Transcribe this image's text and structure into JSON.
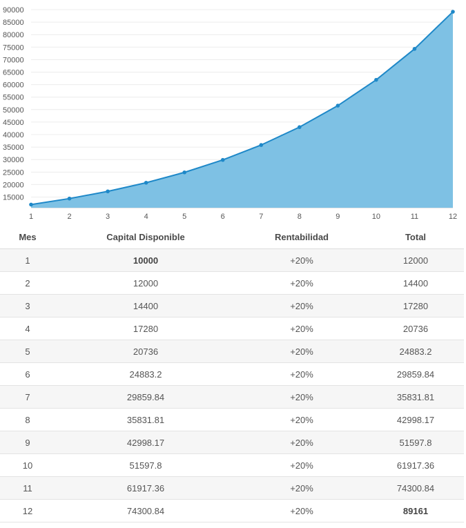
{
  "colors": {
    "line": "#1e88c8",
    "area": "#7ec1e4",
    "point": "#1e88c8"
  },
  "chart_data": {
    "type": "area",
    "title": "",
    "xlabel": "",
    "ylabel": "",
    "x": [
      1,
      2,
      3,
      4,
      5,
      6,
      7,
      8,
      9,
      10,
      11,
      12
    ],
    "series": [
      {
        "values": [
          12000,
          14400,
          17280,
          20736,
          24883.2,
          29859.84,
          35831.81,
          42998.17,
          51597.8,
          61917.36,
          74300.84,
          89161
        ]
      }
    ],
    "yticks": [
      15000,
      20000,
      25000,
      30000,
      35000,
      40000,
      45000,
      50000,
      55000,
      60000,
      65000,
      70000,
      75000,
      80000,
      85000,
      90000
    ],
    "xticks": [
      1,
      2,
      3,
      4,
      5,
      6,
      7,
      8,
      9,
      10,
      11,
      12
    ],
    "ylim": [
      11000,
      90000
    ],
    "grid": true,
    "legend": "none"
  },
  "table": {
    "headers": [
      "Mes",
      "Capital Disponible",
      "Rentabilidad",
      "Total"
    ],
    "rows": [
      {
        "mes": "1",
        "capital": "10000",
        "rent": "+20%",
        "total": "12000",
        "bold_capital": true,
        "bold_total": false
      },
      {
        "mes": "2",
        "capital": "12000",
        "rent": "+20%",
        "total": "14400"
      },
      {
        "mes": "3",
        "capital": "14400",
        "rent": "+20%",
        "total": "17280"
      },
      {
        "mes": "4",
        "capital": "17280",
        "rent": "+20%",
        "total": "20736"
      },
      {
        "mes": "5",
        "capital": "20736",
        "rent": "+20%",
        "total": "24883.2"
      },
      {
        "mes": "6",
        "capital": "24883.2",
        "rent": "+20%",
        "total": "29859.84"
      },
      {
        "mes": "7",
        "capital": "29859.84",
        "rent": "+20%",
        "total": "35831.81"
      },
      {
        "mes": "8",
        "capital": "35831.81",
        "rent": "+20%",
        "total": "42998.17"
      },
      {
        "mes": "9",
        "capital": "42998.17",
        "rent": "+20%",
        "total": "51597.8"
      },
      {
        "mes": "10",
        "capital": "51597.8",
        "rent": "+20%",
        "total": "61917.36"
      },
      {
        "mes": "11",
        "capital": "61917.36",
        "rent": "+20%",
        "total": "74300.84"
      },
      {
        "mes": "12",
        "capital": "74300.84",
        "rent": "+20%",
        "total": "89161",
        "bold_total": true
      }
    ]
  }
}
